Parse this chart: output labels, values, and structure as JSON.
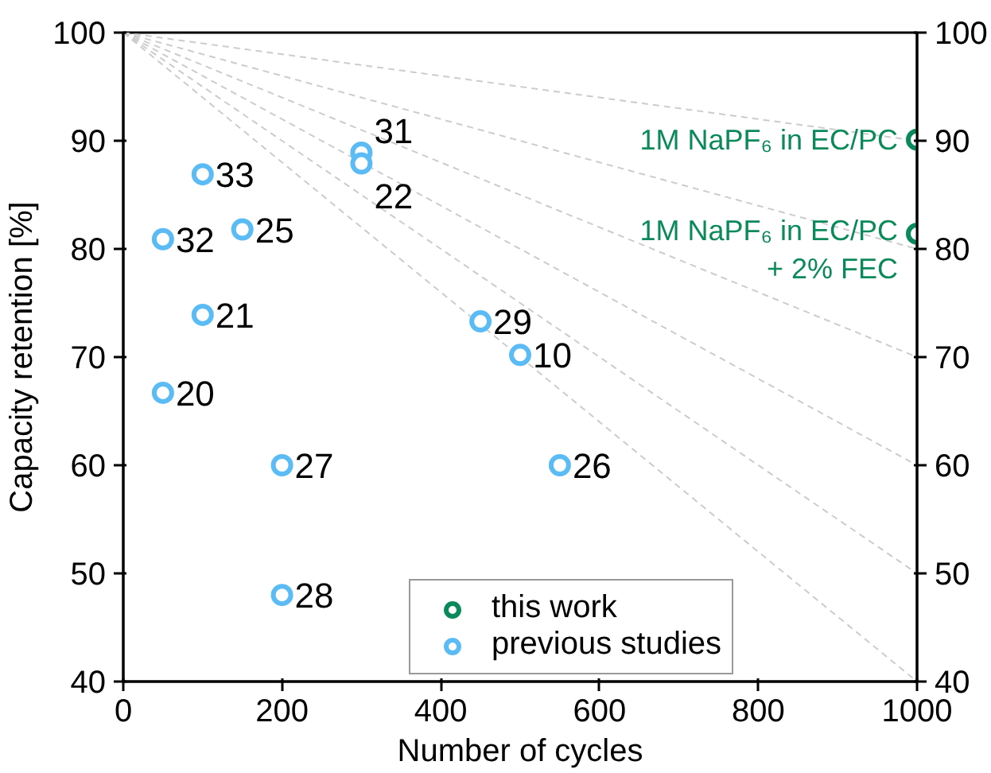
{
  "chart_data": {
    "type": "scatter",
    "xlabel": "Number of cycles",
    "ylabel": "Capacity retention [%]",
    "xlim": [
      0,
      1000
    ],
    "xticks": [
      0,
      200,
      400,
      600,
      800,
      1000
    ],
    "ylim": [
      40,
      100
    ],
    "yticks": [
      40,
      50,
      60,
      70,
      80,
      90,
      100
    ],
    "y2lim": [
      40,
      100
    ],
    "y2ticks": [
      40,
      50,
      60,
      70,
      80,
      90,
      100
    ],
    "marker": "circle",
    "grid": false,
    "legend": "bottom right",
    "series": [
      {
        "type": "line",
        "marker": "none",
        "color": "#cccccc",
        "line_style": "dashed",
        "x": [
          0,
          1000
        ],
        "values": [
          100,
          90
        ]
      },
      {
        "type": "line",
        "marker": "none",
        "color": "#cccccc",
        "line_style": "dashed",
        "x": [
          0,
          1000
        ],
        "values": [
          100,
          80
        ]
      },
      {
        "type": "line",
        "marker": "none",
        "color": "#cccccc",
        "line_style": "dashed",
        "x": [
          0,
          1000
        ],
        "values": [
          100,
          70
        ]
      },
      {
        "type": "line",
        "marker": "none",
        "color": "#cccccc",
        "line_style": "dashed",
        "x": [
          0,
          1000
        ],
        "values": [
          100,
          60
        ]
      },
      {
        "type": "line",
        "marker": "none",
        "color": "#cccccc",
        "line_style": "dashed",
        "x": [
          0,
          1000
        ],
        "values": [
          100,
          50
        ]
      },
      {
        "type": "line",
        "marker": "none",
        "color": "#cccccc",
        "line_style": "dashed",
        "x": [
          0,
          1000
        ],
        "values": [
          100,
          40
        ]
      },
      {
        "name": "this work",
        "color": "#0a8a5a",
        "x": [
          1000,
          1000
        ],
        "values": [
          90.1,
          81.4
        ]
      },
      {
        "name": "previous studies",
        "color": "#5bbcf5",
        "x": [
          100,
          50,
          150,
          100,
          50,
          200,
          200,
          300,
          300,
          450,
          500,
          550
        ],
        "values": [
          86.9,
          80.9,
          81.8,
          73.9,
          66.7,
          60,
          48,
          88.9,
          87.9,
          73.3,
          70.2,
          60
        ]
      }
    ],
    "annotations": [
      {
        "text": "1M NaPF₆ in EC/PC",
        "x": 1000,
        "y": 90.1
      },
      {
        "text": "1M NaPF₆ in EC/PC\n+ 2% FEC",
        "x": 1000,
        "y": 81.4
      },
      {
        "text": "33",
        "x": 100,
        "y": 86.9
      },
      {
        "text": "32",
        "x": 50,
        "y": 80.9
      },
      {
        "text": "25",
        "x": 150,
        "y": 81.8
      },
      {
        "text": "21",
        "x": 100,
        "y": 73.9
      },
      {
        "text": "20",
        "x": 50,
        "y": 66.7
      },
      {
        "text": "27",
        "x": 200,
        "y": 60
      },
      {
        "text": "28",
        "x": 200,
        "y": 48
      },
      {
        "text": "31",
        "x": 300,
        "y": 88.9
      },
      {
        "text": "22",
        "x": 300,
        "y": 87.9
      },
      {
        "text": "29",
        "x": 450,
        "y": 73.3
      },
      {
        "text": "10",
        "x": 500,
        "y": 70.2
      },
      {
        "text": "26",
        "x": 550,
        "y": 60
      }
    ]
  }
}
